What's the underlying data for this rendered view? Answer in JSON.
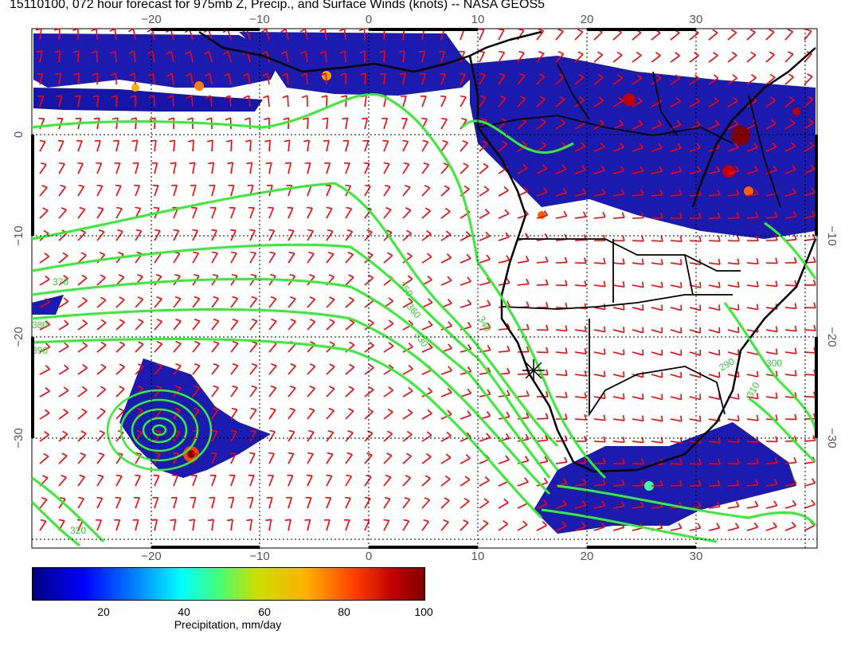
{
  "title": "15110100, 072 hour forecast for 975mb Z, Precip., and Surface Winds (knots) -- NASA GEOS5",
  "axes": {
    "lon_ticks": [
      "−20",
      "−10",
      "0",
      "10",
      "20",
      "30"
    ],
    "lat_ticks": [
      "0",
      "−10",
      "−20",
      "−30"
    ]
  },
  "contour_labels": [
    "350",
    "360",
    "370",
    "380",
    "390",
    "340",
    "330",
    "320",
    "310",
    "290",
    "300"
  ],
  "colorbar": {
    "ticks": [
      "20",
      "40",
      "60",
      "80",
      "100"
    ],
    "label": "Precipitation, mm/day"
  },
  "colors": {
    "wind": "#ff0000",
    "contour": "#33ee33",
    "coast": "#000000",
    "precip_low": "#0000a0",
    "precip_high": "#7f0000"
  },
  "map_elements": {
    "symbols": [
      "wind-barbs",
      "975mb-height-contours",
      "precip-shading",
      "coastlines",
      "storm-center-marker"
    ]
  }
}
